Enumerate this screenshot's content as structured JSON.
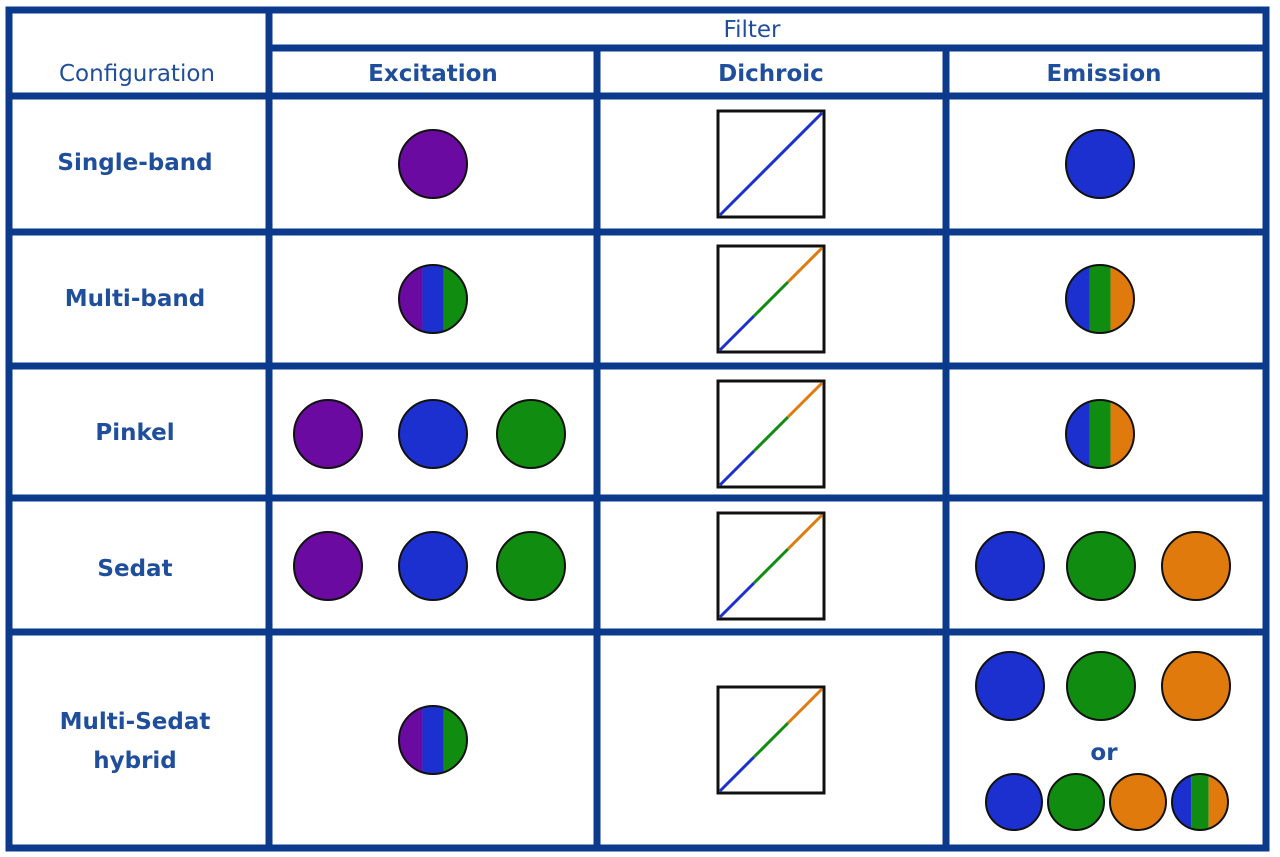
{
  "colors": {
    "border": "#0b3a8d",
    "text": "#1f4f9c",
    "violet": "#6a0aa0",
    "blue": "#1c2fcf",
    "green": "#108c10",
    "orange": "#e07a0c"
  },
  "header": {
    "filter": "Filter",
    "configuration": "Configuration",
    "excitation": "Excitation",
    "dichroic": "Dichroic",
    "emission": "Emission"
  },
  "rows": [
    {
      "label_lines": [
        "Single-band"
      ],
      "excitation": [
        [
          "violet"
        ]
      ],
      "dichroic": [
        "blue"
      ],
      "emission": [
        [
          "blue"
        ]
      ]
    },
    {
      "label_lines": [
        "Multi-band"
      ],
      "excitation": [
        [
          "violet",
          "blue",
          "green"
        ]
      ],
      "dichroic": [
        "blue",
        "green",
        "orange"
      ],
      "emission": [
        [
          "blue",
          "green",
          "orange"
        ]
      ]
    },
    {
      "label_lines": [
        "Pinkel"
      ],
      "excitation": [
        [
          "violet"
        ],
        [
          "blue"
        ],
        [
          "green"
        ]
      ],
      "dichroic": [
        "blue",
        "green",
        "orange"
      ],
      "emission": [
        [
          "blue",
          "green",
          "orange"
        ]
      ]
    },
    {
      "label_lines": [
        "Sedat"
      ],
      "excitation": [
        [
          "violet"
        ],
        [
          "blue"
        ],
        [
          "green"
        ]
      ],
      "dichroic": [
        "blue",
        "green",
        "orange"
      ],
      "emission": [
        [
          "blue"
        ],
        [
          "green"
        ],
        [
          "orange"
        ]
      ]
    },
    {
      "label_lines": [
        "Multi-Sedat",
        "hybrid"
      ],
      "excitation": [
        [
          "violet",
          "blue",
          "green"
        ]
      ],
      "dichroic": [
        "blue",
        "green",
        "orange"
      ],
      "emission_option_a": [
        [
          "blue"
        ],
        [
          "green"
        ],
        [
          "orange"
        ]
      ],
      "or_label": "or",
      "emission_option_b": [
        [
          "blue"
        ],
        [
          "green"
        ],
        [
          "orange"
        ],
        [
          "blue",
          "green",
          "orange"
        ]
      ]
    }
  ]
}
